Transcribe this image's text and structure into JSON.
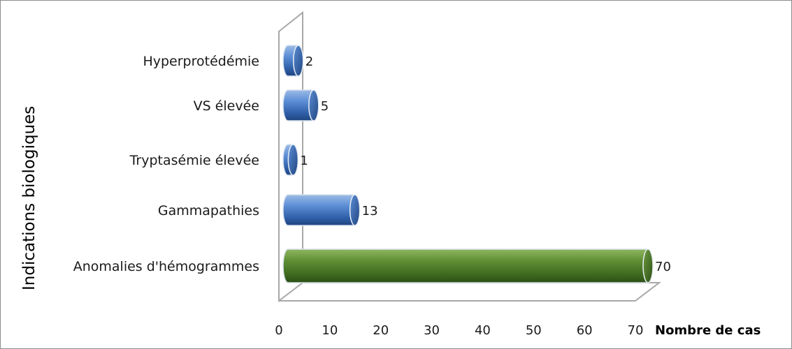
{
  "chart_data": {
    "type": "bar",
    "orientation": "horizontal",
    "style": "3d-cylinder",
    "categories": [
      "Hyperprotédémie",
      "VS élevée",
      "Tryptasémie élevée",
      "Gammapathies",
      "Anomalies d'hémogrammes"
    ],
    "values": [
      2,
      5,
      1,
      13,
      70
    ],
    "data_labels": [
      "2",
      "5",
      "1",
      "13",
      "70"
    ],
    "bar_colors": [
      "#4f81bd",
      "#4f81bd",
      "#4f81bd",
      "#4f81bd",
      "#4f7a28"
    ],
    "xlabel": "Nombre de cas",
    "ylabel": "Indications biologiques",
    "xlim": [
      0,
      70
    ],
    "xticks": [
      "0",
      "10",
      "20",
      "30",
      "40",
      "50",
      "60",
      "70"
    ],
    "grid": false,
    "legend": "none"
  }
}
